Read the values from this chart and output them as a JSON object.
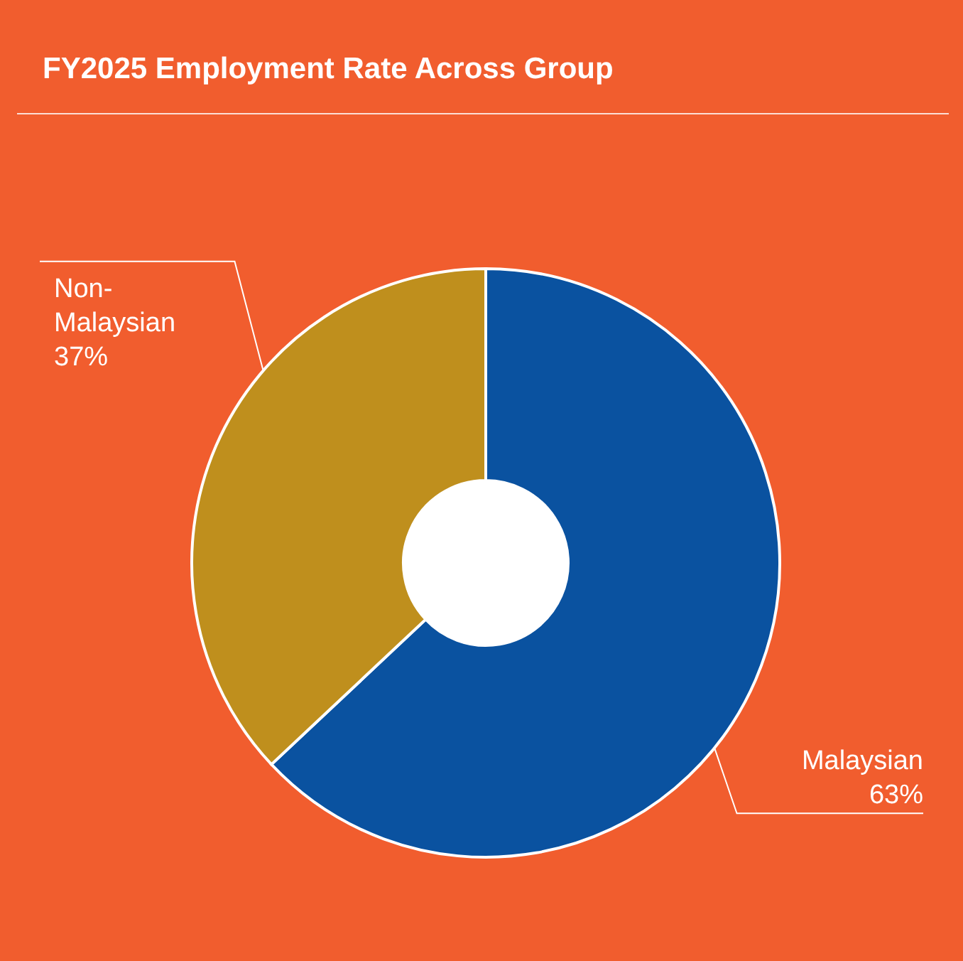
{
  "chart_data": {
    "type": "donut",
    "title": "FY2025 Employment Rate Across Group",
    "categories": [
      "Malaysian",
      "Non-Malaysian"
    ],
    "values": [
      63,
      37
    ],
    "colors": [
      "#0a52a0",
      "#bf8f1d"
    ],
    "value_labels": [
      "63%",
      "37%"
    ]
  }
}
